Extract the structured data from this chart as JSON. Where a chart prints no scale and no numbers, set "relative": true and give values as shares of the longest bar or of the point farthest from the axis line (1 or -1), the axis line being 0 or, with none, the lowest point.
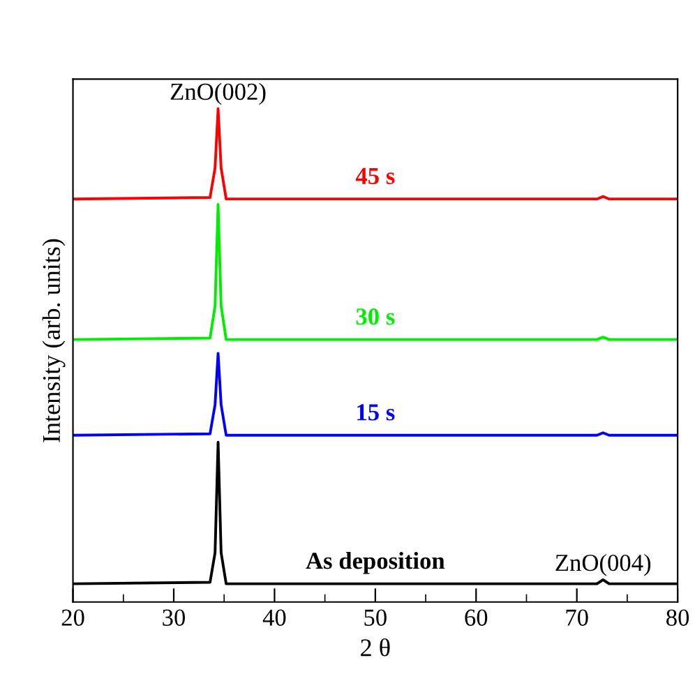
{
  "chart_data": {
    "type": "line",
    "relative": true,
    "xlabel": "2 θ",
    "ylabel": "Intensity (arb. units)",
    "xlim": [
      20,
      80
    ],
    "xticks": [
      20,
      30,
      40,
      50,
      60,
      70,
      80
    ],
    "grid": false,
    "legend": false,
    "marker": "none",
    "line_style": "solid",
    "x": [
      20,
      33.6,
      34.1,
      34.4,
      34.7,
      35.2,
      72.0,
      72.6,
      73.2,
      80
    ],
    "series": [
      {
        "name": "As deposition",
        "color": "#000000",
        "values": [
          0.037,
          0.04,
          0.1,
          0.324,
          0.1,
          0.037,
          0.037,
          0.045,
          0.037,
          0.037
        ]
      },
      {
        "name": "15 s",
        "color": "#0000ff",
        "values": [
          0.338,
          0.341,
          0.4,
          0.504,
          0.4,
          0.338,
          0.338,
          0.343,
          0.338,
          0.338
        ]
      },
      {
        "name": "30 s",
        "color": "#00ee00",
        "values": [
          0.532,
          0.535,
          0.6,
          0.806,
          0.6,
          0.532,
          0.532,
          0.537,
          0.532,
          0.532
        ]
      },
      {
        "name": "45 s",
        "color": "#ff0000",
        "values": [
          0.817,
          0.82,
          0.88,
          1.0,
          0.88,
          0.817,
          0.817,
          0.822,
          0.817,
          0.817
        ]
      }
    ],
    "annotations": [
      {
        "text": "ZnO(002)",
        "x": 34.4,
        "y": 1.0
      },
      {
        "text": "ZnO(004)",
        "x": 72.6,
        "y": 0.045
      }
    ]
  }
}
